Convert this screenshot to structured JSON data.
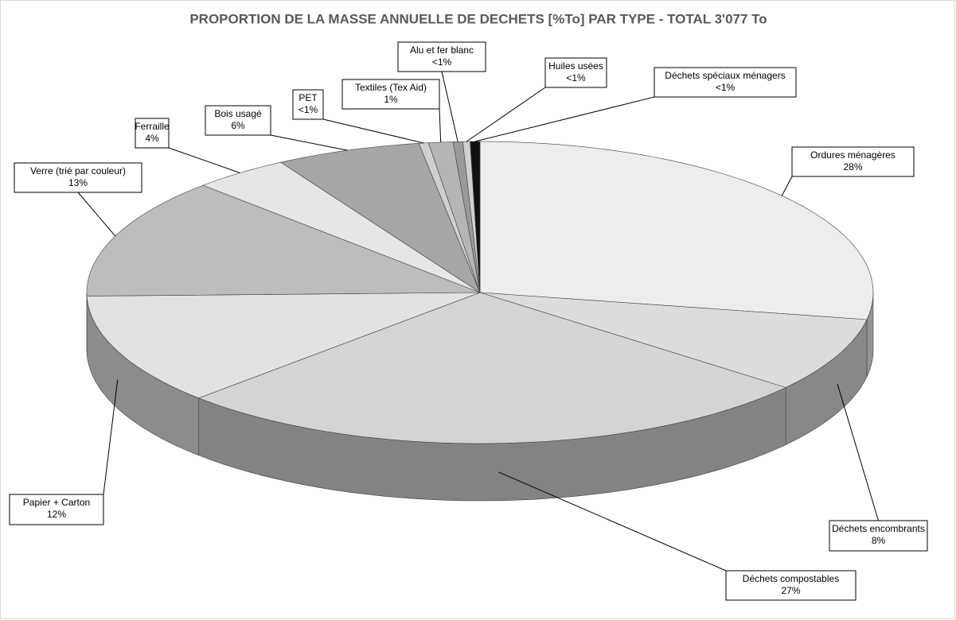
{
  "chart_data": {
    "type": "pie3d",
    "title": "PROPORTION DE LA MASSE ANNUELLE DE DECHETS [%To] PAR TYPE - TOTAL 3'077 To",
    "categories": [
      "Ordures ménagères",
      "Déchets encombrants",
      "Déchets compostables",
      "Papier + Carton",
      "Verre (trié par couleur)",
      "Ferraille",
      "Bois usagé",
      "PET",
      "Textiles (Tex Aid)",
      "Alu et fer blanc",
      "Huiles usées",
      "Déchets spéciaux ménagers"
    ],
    "values": [
      28,
      8,
      27,
      12,
      13,
      4,
      6,
      0.4,
      1,
      0.4,
      0.3,
      0.4
    ],
    "value_labels": [
      "28%",
      "8%",
      "27%",
      "12%",
      "13%",
      "4%",
      "6%",
      "<1%",
      "1%",
      "<1%",
      "<1%",
      "<1%"
    ],
    "colors": [
      "#ededed",
      "#dcdcdc",
      "#d4d4d4",
      "#e2e2e2",
      "#bdbdbd",
      "#e6e6e6",
      "#a6a6a6",
      "#cfcfcf",
      "#b5b5b5",
      "#9a9a9a",
      "#d0d0d0",
      "#111111"
    ]
  }
}
